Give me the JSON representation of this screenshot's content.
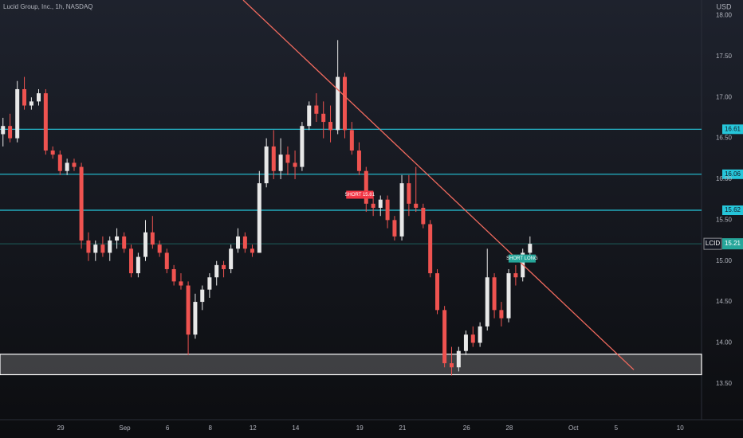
{
  "chart_data": {
    "type": "candlestick",
    "title": "Lucid Group, Inc., 1h, NASDAQ",
    "currency": "USD",
    "symbol": "LCID",
    "up_color": "#e8e8e8",
    "down_color": "#ef5350",
    "x": [
      -2.7,
      -2.37,
      -2.03,
      -1.7,
      -1.37,
      -1.03,
      -0.7,
      -0.37,
      -0.03,
      0.3,
      0.63,
      0.97,
      1.3,
      1.63,
      1.97,
      2.3,
      2.63,
      2.97,
      3.3,
      3.63,
      3.97,
      4.3,
      4.63,
      4.97,
      5.3,
      5.63,
      5.97,
      6.3,
      6.63,
      6.97,
      7.3,
      7.63,
      7.97,
      8.3,
      8.63,
      8.97,
      9.3,
      9.63,
      9.97,
      10.3,
      10.63,
      10.97,
      11.3,
      11.63,
      11.97,
      12.3,
      12.63,
      12.97,
      13.3,
      13.63,
      13.97,
      14.3,
      14.63,
      14.97,
      15.3,
      15.63,
      15.97,
      16.3,
      16.63,
      16.97,
      17.3,
      17.63,
      17.97,
      18.3,
      18.63,
      18.97,
      19.3,
      19.63,
      19.97,
      20.3,
      20.63,
      20.97,
      21.3,
      21.63,
      21.97
    ],
    "open": [
      16.55,
      16.65,
      16.5,
      17.1,
      16.9,
      16.95,
      17.05,
      16.35,
      16.3,
      16.1,
      16.2,
      16.15,
      15.25,
      15.1,
      15.2,
      15.1,
      15.25,
      15.3,
      15.15,
      14.85,
      15.05,
      15.35,
      15.2,
      15.1,
      14.9,
      14.75,
      14.7,
      14.1,
      14.5,
      14.65,
      14.8,
      14.95,
      14.9,
      15.15,
      15.3,
      15.15,
      15.1,
      15.95,
      16.4,
      16.1,
      16.3,
      16.2,
      16.15,
      16.65,
      16.9,
      16.8,
      16.7,
      16.6,
      17.25,
      16.6,
      16.35,
      16.1,
      15.7,
      15.65,
      15.75,
      15.5,
      15.3,
      15.95,
      15.7,
      15.65,
      15.45,
      14.85,
      14.4,
      13.75,
      13.7,
      13.9,
      14.1,
      14.0,
      14.2,
      14.8,
      14.4,
      14.3,
      14.85,
      14.8,
      15.1
    ],
    "high": [
      16.75,
      16.8,
      17.2,
      17.25,
      17.0,
      17.1,
      17.1,
      16.4,
      16.35,
      16.25,
      16.25,
      16.2,
      15.35,
      15.25,
      15.3,
      15.3,
      15.4,
      15.35,
      15.2,
      15.1,
      15.5,
      15.55,
      15.25,
      15.15,
      14.95,
      14.85,
      14.75,
      14.6,
      14.7,
      14.85,
      15.0,
      15.0,
      15.2,
      15.4,
      15.35,
      15.2,
      16.1,
      16.5,
      16.6,
      16.5,
      16.4,
      16.35,
      16.7,
      16.95,
      17.05,
      16.95,
      16.9,
      17.7,
      17.3,
      16.7,
      16.45,
      16.15,
      15.85,
      15.8,
      15.8,
      15.55,
      16.05,
      16.05,
      16.15,
      15.7,
      15.5,
      14.9,
      14.45,
      13.95,
      13.95,
      14.15,
      14.2,
      14.25,
      15.15,
      14.85,
      14.5,
      14.9,
      14.95,
      15.15,
      15.3
    ],
    "low": [
      16.4,
      16.45,
      16.45,
      16.85,
      16.85,
      16.9,
      16.3,
      16.25,
      16.05,
      16.05,
      16.1,
      15.15,
      15.0,
      15.0,
      15.05,
      15.0,
      15.15,
      15.1,
      14.8,
      14.8,
      15.0,
      15.15,
      15.05,
      14.85,
      14.7,
      14.65,
      13.85,
      14.05,
      14.4,
      14.55,
      14.7,
      14.8,
      14.85,
      15.1,
      15.1,
      15.05,
      15.1,
      15.9,
      16.0,
      16.0,
      16.05,
      16.0,
      16.1,
      16.6,
      16.7,
      16.5,
      16.45,
      16.55,
      16.5,
      16.3,
      16.05,
      15.6,
      15.55,
      15.55,
      15.4,
      15.25,
      15.25,
      15.55,
      15.6,
      15.4,
      14.8,
      14.35,
      13.7,
      13.6,
      13.65,
      13.85,
      13.95,
      13.95,
      14.15,
      14.3,
      14.2,
      14.25,
      14.7,
      14.75,
      15.05
    ],
    "close": [
      16.65,
      16.5,
      17.1,
      16.9,
      16.95,
      17.05,
      16.35,
      16.3,
      16.1,
      16.2,
      16.15,
      15.25,
      15.1,
      15.2,
      15.1,
      15.25,
      15.3,
      15.15,
      14.85,
      15.05,
      15.35,
      15.2,
      15.1,
      14.9,
      14.75,
      14.7,
      14.1,
      14.5,
      14.65,
      14.8,
      14.95,
      14.9,
      15.15,
      15.3,
      15.15,
      15.1,
      15.95,
      16.4,
      16.1,
      16.3,
      16.2,
      16.15,
      16.65,
      16.9,
      16.8,
      16.7,
      16.6,
      17.25,
      16.6,
      16.35,
      16.1,
      15.7,
      15.65,
      15.75,
      15.5,
      15.3,
      15.95,
      15.7,
      15.65,
      15.45,
      14.85,
      14.4,
      13.75,
      13.7,
      13.9,
      14.1,
      14.0,
      14.2,
      14.8,
      14.4,
      14.3,
      14.85,
      14.8,
      15.1,
      15.21
    ],
    "xlim": [
      -2.84,
      30
    ],
    "ylim": [
      13.06,
      18.19
    ],
    "yticks": [
      {
        "value": 13.5,
        "label": "13.50"
      },
      {
        "value": 14,
        "label": "14.00"
      },
      {
        "value": 14.5,
        "label": "14.50"
      },
      {
        "value": 15,
        "label": "15.00"
      },
      {
        "value": 15.5,
        "label": "15.50"
      },
      {
        "value": 16,
        "label": "16.00"
      },
      {
        "value": 16.5,
        "label": "16.50"
      },
      {
        "value": 17,
        "label": "17.00"
      },
      {
        "value": 17.5,
        "label": "17.50"
      },
      {
        "value": 18,
        "label": "18.00"
      }
    ],
    "xticks": [
      {
        "value": 0,
        "label": "29"
      },
      {
        "value": 3,
        "label": "Sep"
      },
      {
        "value": 5,
        "label": "6"
      },
      {
        "value": 7,
        "label": "8"
      },
      {
        "value": 9,
        "label": "12"
      },
      {
        "value": 11,
        "label": "14"
      },
      {
        "value": 14,
        "label": "19"
      },
      {
        "value": 16,
        "label": "21"
      },
      {
        "value": 19,
        "label": "26"
      },
      {
        "value": 21,
        "label": "28"
      },
      {
        "value": 24,
        "label": "Oct"
      },
      {
        "value": 26,
        "label": "5"
      },
      {
        "value": 29,
        "label": "10"
      }
    ],
    "grid": false,
    "levels": [
      16.61,
      16.06,
      15.62
    ],
    "level_color": "#26c6da",
    "zone": [
      13.61,
      13.86
    ],
    "zone_color": "#ffffff",
    "trendline": {
      "x": [
        8.54,
        26.83
      ],
      "y": [
        18.19,
        13.67
      ],
      "color": "#f06a5e"
    },
    "last_price_color": "#26a69a",
    "annotations": [
      {
        "text": "SHORT 15.81",
        "x": 14.0,
        "y": 15.81,
        "color": "#f23645"
      },
      {
        "text": "SHORT LONG",
        "x": 21.6,
        "y": 15.03,
        "color": "#26a69a"
      }
    ]
  }
}
